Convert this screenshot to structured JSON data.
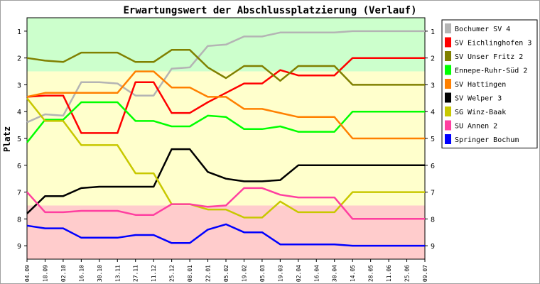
{
  "chart_data": {
    "type": "line",
    "title": "Erwartungswert der Abschlussplatzierung (Verlauf)",
    "ylabel": "Platz",
    "xlabel": "",
    "x": [
      "04.09",
      "18.09",
      "02.10",
      "16.10",
      "30.10",
      "13.11",
      "27.11",
      "11.12",
      "25.12",
      "08.01",
      "22.01",
      "05.02",
      "19.02",
      "05.03",
      "19.03",
      "02.04",
      "16.04",
      "30.04",
      "14.05",
      "28.05",
      "11.06",
      "25.06",
      "09.07"
    ],
    "ylim": [
      0.5,
      9.5
    ],
    "yticks": [
      1,
      2,
      3,
      4,
      5,
      6,
      7,
      8,
      9
    ],
    "y_inverted": true,
    "grid": false,
    "legend_position": "right",
    "zones": [
      {
        "from": 0.5,
        "to": 2.5,
        "color": "#ccffcc"
      },
      {
        "from": 2.5,
        "to": 7.5,
        "color": "#ffffcc"
      },
      {
        "from": 7.5,
        "to": 9.5,
        "color": "#ffcccc"
      }
    ],
    "series": [
      {
        "name": "Bochumer SV 4",
        "color": "#b4b4b4",
        "values": [
          4.4,
          4.1,
          4.15,
          2.9,
          2.9,
          2.95,
          3.4,
          3.4,
          2.4,
          2.35,
          1.55,
          1.5,
          1.2,
          1.2,
          1.05,
          1.05,
          1.05,
          1.05,
          1.0,
          1.0,
          1.0,
          1.0,
          1.0
        ]
      },
      {
        "name": "SV Eichlinghofen 3",
        "color": "#ff0000",
        "values": [
          3.45,
          3.4,
          3.4,
          4.8,
          4.8,
          4.8,
          2.9,
          2.9,
          4.05,
          4.05,
          3.65,
          3.3,
          2.95,
          2.95,
          2.45,
          2.65,
          2.65,
          2.65,
          2.0,
          2.0,
          2.0,
          2.0,
          2.0
        ]
      },
      {
        "name": "SV Unser Fritz 2",
        "color": "#808000",
        "values": [
          2.0,
          2.1,
          2.15,
          1.8,
          1.8,
          1.8,
          2.15,
          2.15,
          1.7,
          1.7,
          2.35,
          2.75,
          2.3,
          2.3,
          2.85,
          2.3,
          2.3,
          2.3,
          3.0,
          3.0,
          3.0,
          3.0,
          3.0
        ]
      },
      {
        "name": "Ennepe-Ruhr-Süd 2",
        "color": "#00ff00",
        "values": [
          5.15,
          4.3,
          4.3,
          3.65,
          3.65,
          3.65,
          4.35,
          4.35,
          4.55,
          4.55,
          4.15,
          4.2,
          4.65,
          4.65,
          4.55,
          4.75,
          4.75,
          4.75,
          4.0,
          4.0,
          4.0,
          4.0,
          4.0
        ]
      },
      {
        "name": "SV Hattingen",
        "color": "#ff8000",
        "values": [
          3.45,
          3.3,
          3.3,
          3.3,
          3.3,
          3.3,
          2.5,
          2.5,
          3.1,
          3.1,
          3.45,
          3.45,
          3.9,
          3.9,
          4.05,
          4.2,
          4.2,
          4.2,
          5.0,
          5.0,
          5.0,
          5.0,
          5.0
        ]
      },
      {
        "name": "SV Welper 3",
        "color": "#000000",
        "values": [
          7.8,
          7.15,
          7.15,
          6.85,
          6.8,
          6.8,
          6.8,
          6.8,
          5.4,
          5.4,
          6.25,
          6.5,
          6.6,
          6.6,
          6.55,
          6.0,
          6.0,
          6.0,
          6.0,
          6.0,
          6.0,
          6.0,
          6.0
        ]
      },
      {
        "name": "SG Winz-Baak",
        "color": "#c8c800",
        "values": [
          3.5,
          4.35,
          4.35,
          5.25,
          5.25,
          5.25,
          6.3,
          6.3,
          7.45,
          7.45,
          7.65,
          7.65,
          7.95,
          7.95,
          7.35,
          7.75,
          7.75,
          7.75,
          7.0,
          7.0,
          7.0,
          7.0,
          7.0
        ]
      },
      {
        "name": "SU Annen 2",
        "color": "#ff3fa0",
        "values": [
          7.0,
          7.75,
          7.75,
          7.7,
          7.7,
          7.7,
          7.85,
          7.85,
          7.45,
          7.45,
          7.55,
          7.5,
          6.85,
          6.85,
          7.1,
          7.2,
          7.2,
          7.2,
          8.0,
          8.0,
          8.0,
          8.0,
          8.0
        ]
      },
      {
        "name": "Springer Bochum",
        "color": "#0000ff",
        "values": [
          8.25,
          8.35,
          8.35,
          8.7,
          8.7,
          8.7,
          8.6,
          8.6,
          8.9,
          8.9,
          8.4,
          8.2,
          8.5,
          8.5,
          8.95,
          8.95,
          8.95,
          8.95,
          9.0,
          9.0,
          9.0,
          9.0,
          9.0
        ]
      }
    ]
  }
}
